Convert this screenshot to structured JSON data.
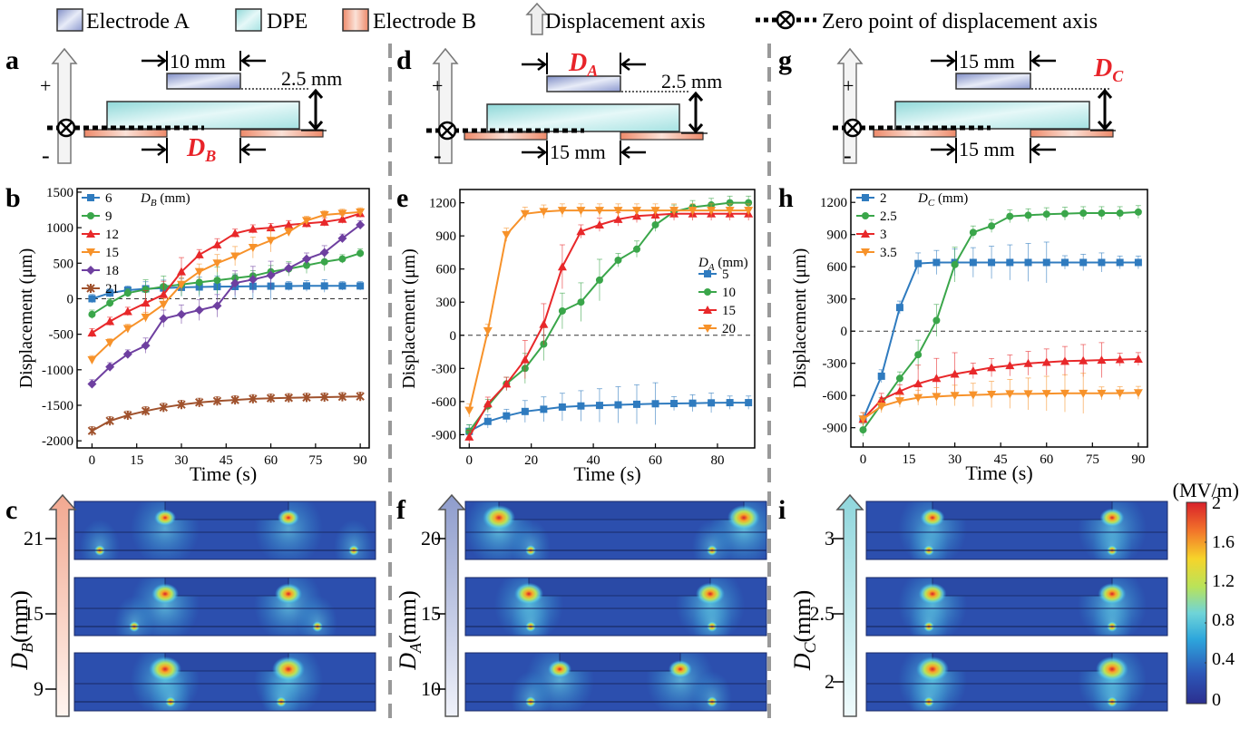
{
  "legend": {
    "electrode_a": "Electrode A",
    "dpe": "DPE",
    "electrode_b": "Electrode B",
    "disp_axis": "Displacement axis",
    "zero_point": "Zero point of displacement axis"
  },
  "colors": {
    "electrode_a": "#9aa6d4",
    "dpe": "#bfe8e8",
    "electrode_b": "#f2b19a",
    "highlight": "#e8242a",
    "s_blue": "#2f7bbf",
    "s_green": "#3aa64a",
    "s_red": "#e8282a",
    "s_orange": "#f7922a",
    "s_purple": "#6e3fa0",
    "s_brown": "#a0522d"
  },
  "panel_letters": [
    "a",
    "b",
    "c",
    "d",
    "e",
    "f",
    "g",
    "h",
    "i"
  ],
  "schematics": [
    {
      "top_dim": "10 mm",
      "height_dim": "2.5 mm",
      "bottom_dim": "",
      "var_label": "D",
      "var_sub": "B",
      "var_pos": "bottom",
      "plus": "+",
      "minus": "-"
    },
    {
      "top_dim": "",
      "height_dim": "2.5 mm",
      "bottom_dim": "15 mm",
      "var_label": "D",
      "var_sub": "A",
      "var_pos": "top",
      "plus": "+",
      "minus": "-"
    },
    {
      "top_dim": "15 mm",
      "height_dim": "",
      "bottom_dim": "15 mm",
      "var_label": "D",
      "var_sub": "C",
      "var_pos": "height",
      "plus": "+",
      "minus": "-"
    }
  ],
  "chart_data": [
    {
      "type": "line",
      "panel": "b",
      "xlabel": "Time (s)",
      "ylabel": "Displacement (μm)",
      "legend_title": "D_B (mm)",
      "xlim": [
        -5,
        93
      ],
      "ylim": [
        -2100,
        1550
      ],
      "xticks": [
        0,
        15,
        30,
        45,
        60,
        75,
        90
      ],
      "yticks": [
        -2000,
        -1500,
        -1000,
        -500,
        0,
        500,
        1000,
        1500
      ],
      "zero_line": true,
      "series": [
        {
          "name": "6",
          "color": "#2f7bbf",
          "marker": "square",
          "x": [
            0,
            6,
            12,
            18,
            24,
            30,
            36,
            42,
            48,
            54,
            60,
            66,
            72,
            78,
            84,
            90
          ],
          "y": [
            0,
            80,
            120,
            140,
            150,
            160,
            165,
            170,
            172,
            175,
            177,
            178,
            180,
            180,
            180,
            180
          ]
        },
        {
          "name": "9",
          "color": "#3aa64a",
          "marker": "circle",
          "x": [
            0,
            6,
            12,
            18,
            24,
            30,
            36,
            42,
            48,
            54,
            60,
            66,
            72,
            78,
            84,
            90
          ],
          "y": [
            -220,
            -60,
            80,
            130,
            170,
            200,
            230,
            260,
            290,
            320,
            380,
            420,
            470,
            520,
            560,
            640
          ]
        },
        {
          "name": "12",
          "color": "#e8282a",
          "marker": "triangle",
          "x": [
            0,
            6,
            12,
            18,
            24,
            30,
            36,
            42,
            48,
            54,
            60,
            66,
            72,
            78,
            84,
            90
          ],
          "y": [
            -480,
            -320,
            -180,
            -60,
            60,
            380,
            620,
            760,
            920,
            980,
            1000,
            1040,
            1060,
            1080,
            1120,
            1200
          ]
        },
        {
          "name": "15",
          "color": "#f7922a",
          "marker": "triangle-down",
          "x": [
            0,
            6,
            12,
            18,
            24,
            30,
            36,
            42,
            48,
            54,
            60,
            66,
            72,
            78,
            84,
            90
          ],
          "y": [
            -860,
            -620,
            -420,
            -260,
            -80,
            200,
            380,
            500,
            600,
            720,
            820,
            940,
            1100,
            1180,
            1200,
            1220
          ]
        },
        {
          "name": "18",
          "color": "#6e3fa0",
          "marker": "diamond",
          "x": [
            0,
            6,
            12,
            18,
            24,
            30,
            36,
            42,
            48,
            54,
            60,
            66,
            72,
            78,
            84,
            90
          ],
          "y": [
            -1200,
            -960,
            -780,
            -660,
            -280,
            -220,
            -160,
            -100,
            220,
            270,
            330,
            430,
            560,
            650,
            850,
            1040
          ]
        },
        {
          "name": "21",
          "color": "#a0522d",
          "marker": "star",
          "x": [
            0,
            6,
            12,
            18,
            24,
            30,
            36,
            42,
            48,
            54,
            60,
            66,
            72,
            78,
            84,
            90
          ],
          "y": [
            -1860,
            -1720,
            -1640,
            -1580,
            -1530,
            -1490,
            -1460,
            -1440,
            -1425,
            -1410,
            -1400,
            -1395,
            -1390,
            -1385,
            -1380,
            -1375
          ]
        }
      ]
    },
    {
      "type": "line",
      "panel": "e",
      "xlabel": "Time (s)",
      "ylabel": "Displacement (μm)",
      "legend_title": "D_A (mm)",
      "xlim": [
        -3,
        92
      ],
      "ylim": [
        -1020,
        1320
      ],
      "xticks": [
        0,
        20,
        40,
        60,
        80
      ],
      "yticks": [
        -900,
        -600,
        -300,
        0,
        300,
        600,
        900,
        1200
      ],
      "zero_line": true,
      "series": [
        {
          "name": "5",
          "color": "#2f7bbf",
          "marker": "square",
          "x": [
            0,
            6,
            12,
            18,
            24,
            30,
            36,
            42,
            48,
            54,
            60,
            66,
            72,
            78,
            84,
            90
          ],
          "y": [
            -870,
            -780,
            -730,
            -690,
            -670,
            -650,
            -640,
            -635,
            -630,
            -625,
            -620,
            -618,
            -615,
            -612,
            -610,
            -610
          ]
        },
        {
          "name": "10",
          "color": "#3aa64a",
          "marker": "circle",
          "x": [
            0,
            6,
            12,
            18,
            24,
            30,
            36,
            42,
            48,
            54,
            60,
            66,
            72,
            78,
            84,
            90
          ],
          "y": [
            -870,
            -640,
            -440,
            -300,
            -80,
            220,
            300,
            500,
            680,
            780,
            1000,
            1120,
            1160,
            1180,
            1200,
            1200
          ]
        },
        {
          "name": "15",
          "color": "#e8282a",
          "marker": "triangle",
          "x": [
            0,
            6,
            12,
            18,
            24,
            30,
            36,
            42,
            48,
            54,
            60,
            66,
            72,
            78,
            84,
            90
          ],
          "y": [
            -920,
            -620,
            -440,
            -220,
            100,
            620,
            940,
            1000,
            1050,
            1080,
            1090,
            1100,
            1100,
            1100,
            1100,
            1100
          ]
        },
        {
          "name": "20",
          "color": "#f7922a",
          "marker": "triangle-down",
          "x": [
            0,
            6,
            12,
            18,
            24,
            30,
            36,
            42,
            48,
            54,
            60,
            66,
            72,
            78,
            84,
            90
          ],
          "y": [
            -680,
            40,
            910,
            1100,
            1120,
            1130,
            1130,
            1130,
            1130,
            1130,
            1130,
            1130,
            1130,
            1130,
            1130,
            1130
          ]
        }
      ]
    },
    {
      "type": "line",
      "panel": "h",
      "xlabel": "Time (s)",
      "ylabel": "Displacement (μm)",
      "legend_title": "D_C (mm)",
      "xlim": [
        -4,
        93
      ],
      "ylim": [
        -1080,
        1320
      ],
      "xticks": [
        0,
        15,
        30,
        45,
        60,
        75,
        90
      ],
      "yticks": [
        -900,
        -600,
        -300,
        0,
        300,
        600,
        900,
        1200
      ],
      "zero_line": true,
      "series": [
        {
          "name": "2",
          "color": "#2f7bbf",
          "marker": "square",
          "x": [
            0,
            6,
            12,
            18,
            24,
            30,
            36,
            42,
            48,
            54,
            60,
            66,
            72,
            78,
            84,
            90
          ],
          "y": [
            -820,
            -420,
            220,
            630,
            640,
            640,
            640,
            640,
            640,
            640,
            640,
            640,
            640,
            640,
            640,
            640
          ]
        },
        {
          "name": "2.5",
          "color": "#3aa64a",
          "marker": "circle",
          "x": [
            0,
            6,
            12,
            18,
            24,
            30,
            36,
            42,
            48,
            54,
            60,
            66,
            72,
            78,
            84,
            90
          ],
          "y": [
            -920,
            -680,
            -440,
            -220,
            100,
            620,
            920,
            980,
            1070,
            1080,
            1090,
            1095,
            1100,
            1100,
            1100,
            1110
          ]
        },
        {
          "name": "3",
          "color": "#e8282a",
          "marker": "triangle",
          "x": [
            0,
            6,
            12,
            18,
            24,
            30,
            36,
            42,
            48,
            54,
            60,
            66,
            72,
            78,
            84,
            90
          ],
          "y": [
            -820,
            -640,
            -560,
            -490,
            -440,
            -400,
            -370,
            -340,
            -320,
            -300,
            -290,
            -280,
            -275,
            -270,
            -265,
            -260
          ]
        },
        {
          "name": "3.5",
          "color": "#f7922a",
          "marker": "triangle-down",
          "x": [
            0,
            6,
            12,
            18,
            24,
            30,
            36,
            42,
            48,
            54,
            60,
            66,
            72,
            78,
            84,
            90
          ],
          "y": [
            -820,
            -700,
            -650,
            -620,
            -610,
            -600,
            -595,
            -590,
            -585,
            -585,
            -582,
            -580,
            -580,
            -580,
            -578,
            -575
          ]
        }
      ]
    }
  ],
  "field_maps": [
    {
      "panel": "c",
      "axis_label": "D",
      "axis_sub": "B",
      "unit": "(mm)",
      "ticks": [
        "21",
        "15",
        "9"
      ],
      "arrow_color": "#f2a890"
    },
    {
      "panel": "f",
      "axis_label": "D",
      "axis_sub": "A",
      "unit": "(mm)",
      "ticks": [
        "20",
        "15",
        "10"
      ],
      "arrow_color": "#8e9ccc"
    },
    {
      "panel": "i",
      "axis_label": "D",
      "axis_sub": "C",
      "unit": "(mm)",
      "ticks": [
        "3",
        "2.5",
        "2"
      ],
      "arrow_color": "#8fd6dc"
    }
  ],
  "colorbar": {
    "unit": "(MV/m)",
    "ticks": [
      "2",
      "1.6",
      "1.2",
      "0.8",
      "0.4",
      "0"
    ]
  }
}
